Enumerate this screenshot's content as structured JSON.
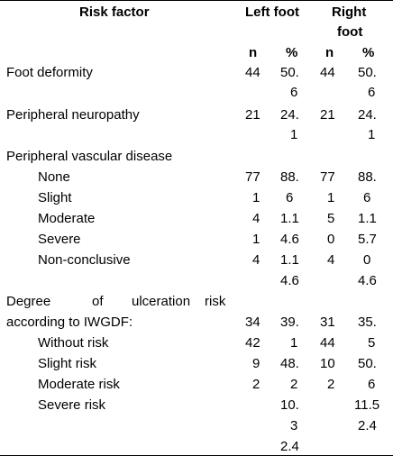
{
  "header": {
    "risk_factor": "Risk factor",
    "left_foot": "Left foot",
    "right_foot_1": "Right",
    "right_foot_2": "foot",
    "n_left": "n",
    "pct_left": "%",
    "n_right": "n",
    "pct_right": "%"
  },
  "rows": [
    {
      "label": "Foot deformity",
      "ln": "44",
      "lp1": "50.",
      "lp2": "6",
      "rn": "44",
      "rp1": "50.",
      "rp2": "6"
    },
    {
      "label": "Peripheral neuropathy",
      "ln": "21",
      "lp1": "24.",
      "lp2": "1",
      "rn": "21",
      "rp1": "24.",
      "rp2": "1"
    },
    {
      "label": "Peripheral vascular disease"
    },
    {
      "label": "None",
      "ln": "77",
      "lp": "88.",
      "rn": "77",
      "rp": "88."
    },
    {
      "label": "Slight",
      "ln": "1",
      "lp": "6",
      "rn": "1",
      "rp": "6"
    },
    {
      "label": "Moderate",
      "ln": "4",
      "lp": "1.1",
      "rn": "5",
      "rp": "1.1"
    },
    {
      "label": "Severe",
      "ln": "1",
      "lp": "4.6",
      "rn": "0",
      "rp": "5.7"
    },
    {
      "label": "Non-conclusive",
      "ln": "4",
      "lp": "1.1",
      "rn": "4",
      "rp": "0"
    },
    {
      "lp": "4.6",
      "rp": "4.6"
    },
    {
      "label_words": [
        "Degree",
        "of",
        "ulceration",
        "risk"
      ]
    },
    {
      "label": "according to IWGDF:",
      "ln": "34",
      "lp": "39.",
      "rn": "31",
      "rp": "35."
    },
    {
      "label": "Without risk",
      "ln": "42",
      "lp": "1",
      "rn": "44",
      "rp": "5"
    },
    {
      "label": "Slight risk",
      "ln": "9",
      "lp": "48.",
      "rn": "10",
      "rp": "50."
    },
    {
      "label": "Moderate risk",
      "ln": "2",
      "lp": "2",
      "rn": "2",
      "rp": "6"
    },
    {
      "label": "Severe risk",
      "lp": "10.",
      "rp": "11.5"
    },
    {
      "lp": "3",
      "rp": "2.4"
    },
    {
      "lp": "2.4"
    }
  ]
}
